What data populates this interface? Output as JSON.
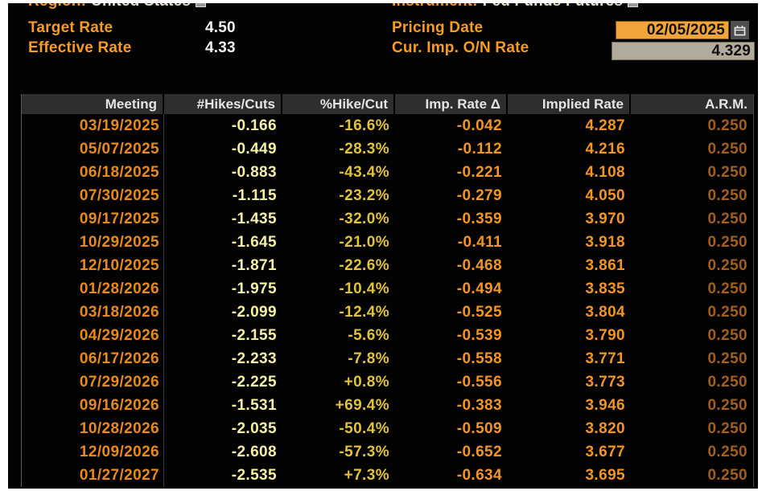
{
  "colors": {
    "amber": "#f79b22",
    "date_orange": "#e8891c",
    "pale_yellow": "#f4f0a4",
    "gold_yellow": "#e0c23c",
    "orange_value": "#f29426",
    "dim_orange": "#a35e1b",
    "white_value": "#f2f2f2",
    "header_bg": "#2e2e2e",
    "date_box_bg": "#f0a43a",
    "rate_box_bg": "#b2aa9b"
  },
  "top": {
    "region_label": "Region:",
    "region_value": "United States",
    "instrument_label": "Instrument:",
    "instrument_value": "Fed Funds Futures",
    "target_rate_label": "Target Rate",
    "target_rate_value": "4.50",
    "effective_rate_label": "Effective Rate",
    "effective_rate_value": "4.33",
    "pricing_date_label": "Pricing Date",
    "pricing_date_value": "02/05/2025",
    "cur_imp_on_rate_label": "Cur. Imp. O/N Rate",
    "cur_imp_on_rate_value": "4.329"
  },
  "table": {
    "columns": [
      "Meeting",
      "#Hikes/Cuts",
      "%Hike/Cut",
      "Imp. Rate Δ",
      "Implied Rate",
      "A.R.M."
    ],
    "rows": [
      [
        "03/19/2025",
        "-0.166",
        "-16.6%",
        "-0.042",
        "4.287",
        "0.250"
      ],
      [
        "05/07/2025",
        "-0.449",
        "-28.3%",
        "-0.112",
        "4.216",
        "0.250"
      ],
      [
        "06/18/2025",
        "-0.883",
        "-43.4%",
        "-0.221",
        "4.108",
        "0.250"
      ],
      [
        "07/30/2025",
        "-1.115",
        "-23.2%",
        "-0.279",
        "4.050",
        "0.250"
      ],
      [
        "09/17/2025",
        "-1.435",
        "-32.0%",
        "-0.359",
        "3.970",
        "0.250"
      ],
      [
        "10/29/2025",
        "-1.645",
        "-21.0%",
        "-0.411",
        "3.918",
        "0.250"
      ],
      [
        "12/10/2025",
        "-1.871",
        "-22.6%",
        "-0.468",
        "3.861",
        "0.250"
      ],
      [
        "01/28/2026",
        "-1.975",
        "-10.4%",
        "-0.494",
        "3.835",
        "0.250"
      ],
      [
        "03/18/2026",
        "-2.099",
        "-12.4%",
        "-0.525",
        "3.804",
        "0.250"
      ],
      [
        "04/29/2026",
        "-2.155",
        "-5.6%",
        "-0.539",
        "3.790",
        "0.250"
      ],
      [
        "06/17/2026",
        "-2.233",
        "-7.8%",
        "-0.558",
        "3.771",
        "0.250"
      ],
      [
        "07/29/2026",
        "-2.225",
        "+0.8%",
        "-0.556",
        "3.773",
        "0.250"
      ],
      [
        "09/16/2026",
        "-1.531",
        "+69.4%",
        "-0.383",
        "3.946",
        "0.250"
      ],
      [
        "10/28/2026",
        "-2.035",
        "-50.4%",
        "-0.509",
        "3.820",
        "0.250"
      ],
      [
        "12/09/2026",
        "-2.608",
        "-57.3%",
        "-0.652",
        "3.677",
        "0.250"
      ],
      [
        "01/27/2027",
        "-2.535",
        "+7.3%",
        "-0.634",
        "3.695",
        "0.250"
      ]
    ]
  }
}
